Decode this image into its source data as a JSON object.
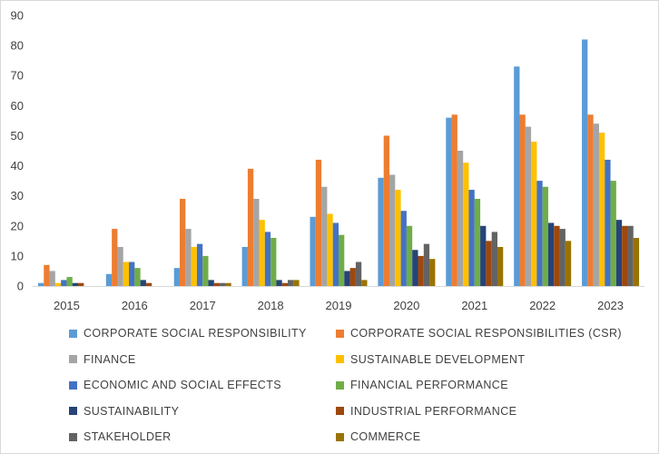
{
  "chart_data": {
    "type": "bar",
    "title": "",
    "xlabel": "",
    "ylabel": "",
    "ylim": [
      0,
      90
    ],
    "yticks": [
      0,
      10,
      20,
      30,
      40,
      50,
      60,
      70,
      80,
      90
    ],
    "grid": false,
    "legend_position": "bottom",
    "categories": [
      "2015",
      "2016",
      "2017",
      "2018",
      "2019",
      "2020",
      "2021",
      "2022",
      "2023"
    ],
    "series": [
      {
        "name": "CORPORATE SOCIAL RESPONSIBILITY",
        "color": "#5B9BD5",
        "values": [
          1,
          4,
          6,
          13,
          23,
          36,
          56,
          73,
          82
        ]
      },
      {
        "name": "CORPORATE SOCIAL RESPONSIBILITIES (CSR)",
        "color": "#ED7D31",
        "values": [
          7,
          19,
          29,
          39,
          42,
          50,
          57,
          57,
          57
        ]
      },
      {
        "name": "FINANCE",
        "color": "#A5A5A5",
        "values": [
          5,
          13,
          19,
          29,
          33,
          37,
          45,
          53,
          54
        ]
      },
      {
        "name": "SUSTAINABLE DEVELOPMENT",
        "color": "#FFC000",
        "values": [
          1,
          8,
          13,
          22,
          24,
          32,
          41,
          48,
          51
        ]
      },
      {
        "name": "ECONOMIC AND SOCIAL EFFECTS",
        "color": "#4472C4",
        "values": [
          2,
          8,
          14,
          18,
          21,
          25,
          32,
          35,
          42
        ]
      },
      {
        "name": "FINANCIAL PERFORMANCE",
        "color": "#70AD47",
        "values": [
          3,
          6,
          10,
          16,
          17,
          20,
          29,
          33,
          35
        ]
      },
      {
        "name": "SUSTAINABILITY",
        "color": "#264478",
        "values": [
          1,
          2,
          2,
          2,
          5,
          12,
          20,
          21,
          22
        ]
      },
      {
        "name": "INDUSTRIAL PERFORMANCE",
        "color": "#9E480E",
        "values": [
          1,
          1,
          1,
          1,
          6,
          10,
          15,
          20,
          20
        ]
      },
      {
        "name": "STAKEHOLDER",
        "color": "#636363",
        "values": [
          0,
          0,
          1,
          2,
          8,
          14,
          18,
          19,
          20
        ]
      },
      {
        "name": "COMMERCE",
        "color": "#997300",
        "values": [
          0,
          0,
          1,
          2,
          2,
          9,
          13,
          15,
          16
        ]
      }
    ]
  }
}
